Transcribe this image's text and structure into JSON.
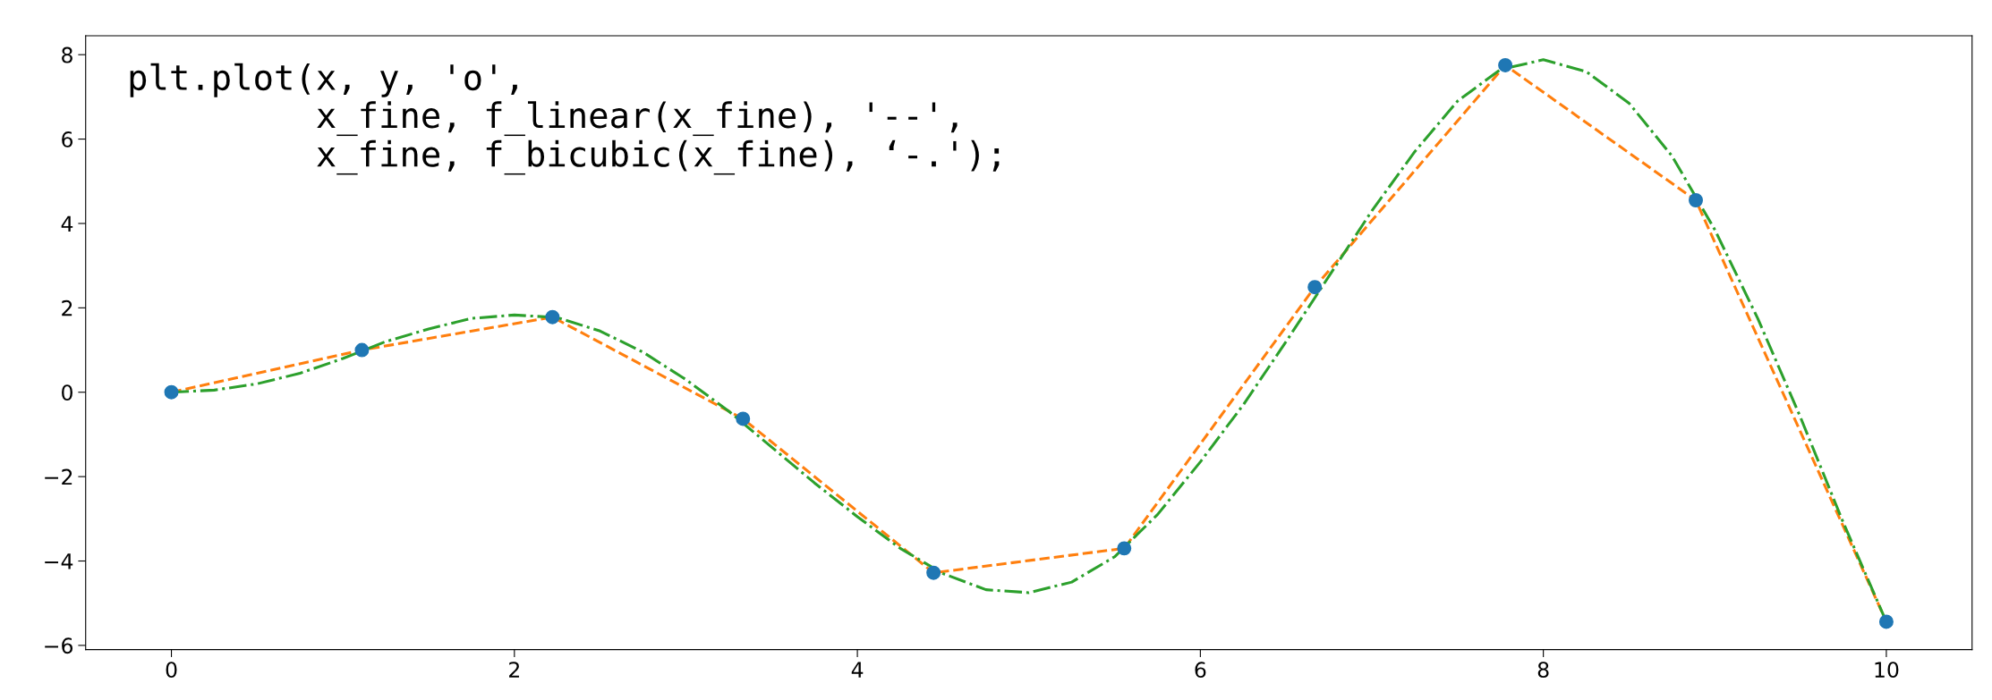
{
  "chart_data": {
    "type": "line",
    "xlim": [
      -0.5,
      10.5
    ],
    "ylim": [
      -6.1,
      8.45
    ],
    "xticks": [
      0,
      2,
      4,
      6,
      8,
      10
    ],
    "yticks": [
      {
        "value": -6,
        "label": "−6"
      },
      {
        "value": -4,
        "label": "−4"
      },
      {
        "value": -2,
        "label": "−2"
      },
      0,
      2,
      4,
      6,
      8
    ],
    "grid": false,
    "legend": false,
    "annotations": [
      "plt.plot(x, y, 'o',\n         x_fine, f_linear(x_fine), '--',\n         x_fine, f_bicubic(x_fine), ‘-.');"
    ],
    "series": [
      {
        "type": "scatter",
        "marker": "circle",
        "color": "#1f77b4",
        "x": [
          0,
          1.111,
          2.222,
          3.333,
          4.444,
          5.556,
          6.667,
          7.778,
          8.889,
          10
        ],
        "values": [
          0,
          1.0,
          1.78,
          -0.63,
          -4.28,
          -3.7,
          2.49,
          7.75,
          4.55,
          -5.44
        ]
      },
      {
        "line_style": "dashed",
        "color": "#ff7f0e",
        "x": [
          0,
          1.111,
          2.222,
          3.333,
          4.444,
          5.556,
          6.667,
          7.778,
          8.889,
          10
        ],
        "values": [
          0,
          1.0,
          1.78,
          -0.63,
          -4.28,
          -3.7,
          2.49,
          7.75,
          4.55,
          -5.44
        ]
      },
      {
        "line_style": "dashdot",
        "color": "#2ca02c",
        "x": [
          0,
          0.25,
          0.5,
          0.75,
          1.0,
          1.25,
          1.5,
          1.75,
          2.0,
          2.25,
          2.5,
          2.75,
          3.0,
          3.25,
          3.5,
          3.75,
          4.0,
          4.25,
          4.5,
          4.75,
          5.0,
          5.25,
          5.5,
          5.75,
          6.0,
          6.25,
          6.5,
          6.75,
          7.0,
          7.25,
          7.5,
          7.75,
          8.0,
          8.25,
          8.5,
          8.75,
          9.0,
          9.25,
          9.5,
          9.75,
          10
        ],
        "values": [
          0,
          0.05,
          0.2,
          0.45,
          0.8,
          1.2,
          1.5,
          1.75,
          1.83,
          1.77,
          1.45,
          0.95,
          0.3,
          -0.45,
          -1.3,
          -2.15,
          -2.95,
          -3.7,
          -4.3,
          -4.68,
          -4.75,
          -4.5,
          -3.9,
          -2.9,
          -1.65,
          -0.3,
          1.2,
          2.75,
          4.3,
          5.7,
          6.9,
          7.65,
          7.88,
          7.6,
          6.85,
          5.6,
          3.85,
          1.75,
          -0.6,
          -3.1,
          -5.44
        ]
      }
    ]
  }
}
